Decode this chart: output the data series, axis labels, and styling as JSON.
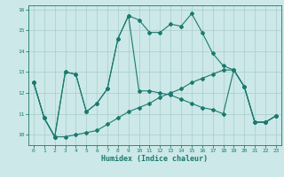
{
  "xlabel": "Humidex (Indice chaleur)",
  "xlim": [
    -0.5,
    23.5
  ],
  "ylim": [
    9.5,
    16.2
  ],
  "yticks": [
    10,
    11,
    12,
    13,
    14,
    15,
    16
  ],
  "xticks": [
    0,
    1,
    2,
    3,
    4,
    5,
    6,
    7,
    8,
    9,
    10,
    11,
    12,
    13,
    14,
    15,
    16,
    17,
    18,
    19,
    20,
    21,
    22,
    23
  ],
  "bg_color": "#cce8e8",
  "line_color": "#1a7a6e",
  "grid_color": "#aacccc",
  "line1_x": [
    0,
    1,
    2,
    3,
    4,
    5,
    6,
    7,
    8,
    9,
    10,
    11,
    12,
    13,
    14,
    15,
    16,
    17,
    18,
    19,
    20,
    21,
    22,
    23
  ],
  "line1_y": [
    12.5,
    10.8,
    9.9,
    13.0,
    12.9,
    11.1,
    11.5,
    12.2,
    14.6,
    15.7,
    15.5,
    14.9,
    14.9,
    15.3,
    15.2,
    15.8,
    14.9,
    13.9,
    13.3,
    13.1,
    12.3,
    10.6,
    10.6,
    10.9
  ],
  "line2_x": [
    0,
    1,
    2,
    3,
    4,
    5,
    6,
    7,
    8,
    9,
    10,
    11,
    12,
    13,
    14,
    15,
    16,
    17,
    18,
    19,
    20,
    21,
    22,
    23
  ],
  "line2_y": [
    12.5,
    10.8,
    9.9,
    9.9,
    10.0,
    10.1,
    10.2,
    10.5,
    10.8,
    11.1,
    11.3,
    11.5,
    11.8,
    12.0,
    12.2,
    12.5,
    12.7,
    12.9,
    13.1,
    13.1,
    12.3,
    10.6,
    10.6,
    10.9
  ],
  "line3_x": [
    0,
    1,
    2,
    3,
    4,
    5,
    6,
    7,
    8,
    9,
    10,
    11,
    12,
    13,
    14,
    15,
    16,
    17,
    18,
    19,
    20,
    21,
    22,
    23
  ],
  "line3_y": [
    12.5,
    10.8,
    9.9,
    13.0,
    12.9,
    11.1,
    11.5,
    12.2,
    14.6,
    15.7,
    12.1,
    12.1,
    12.0,
    11.9,
    11.7,
    11.5,
    11.3,
    11.2,
    11.0,
    13.1,
    12.3,
    10.6,
    10.6,
    10.9
  ]
}
